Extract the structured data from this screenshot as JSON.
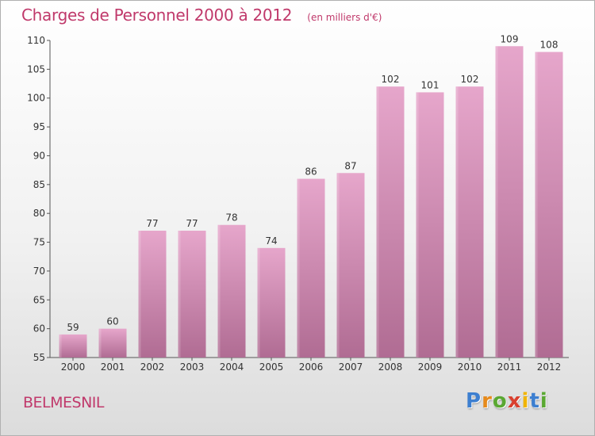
{
  "chart_data": {
    "type": "bar",
    "title": "Charges de Personnel 2000 à 2012",
    "subtitle": "(en milliers d'€)",
    "categories": [
      "2000",
      "2001",
      "2002",
      "2003",
      "2004",
      "2005",
      "2006",
      "2007",
      "2008",
      "2009",
      "2010",
      "2011",
      "2012"
    ],
    "values": [
      59,
      60,
      77,
      77,
      78,
      74,
      86,
      87,
      102,
      101,
      102,
      109,
      108
    ],
    "ylim": [
      55,
      110
    ],
    "yticks": [
      55,
      60,
      65,
      70,
      75,
      80,
      85,
      90,
      95,
      100,
      105,
      110
    ],
    "grid": false,
    "bar_color_top": "#e6a6cb",
    "bar_color_bottom": "#b06c93",
    "label_color": "#333333"
  },
  "commune": "BELMESNIL",
  "brand": {
    "letters": [
      "P",
      "r",
      "o",
      "x",
      "i",
      "t",
      "i"
    ],
    "colors": [
      "#3d7fd0",
      "#e68a1b",
      "#5aa832",
      "#d9402e",
      "#f0b400",
      "#3d7fd0",
      "#5aa832"
    ]
  },
  "colors": {
    "title": "#c0396b",
    "axis": "#555555"
  }
}
